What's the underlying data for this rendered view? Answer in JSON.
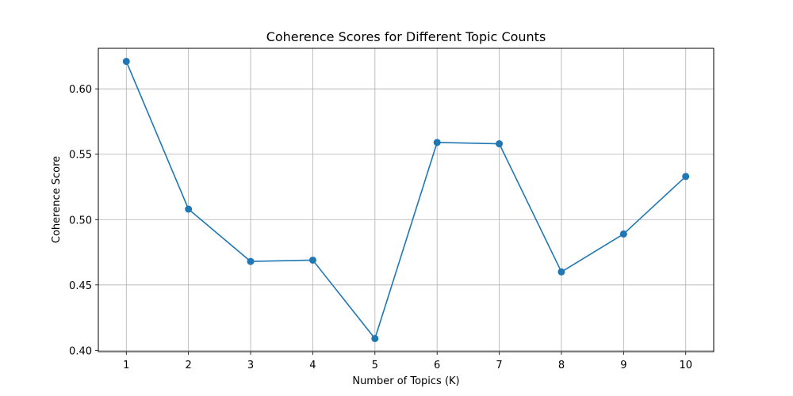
{
  "chart_data": {
    "type": "line",
    "title": "Coherence Scores for Different Topic Counts",
    "xlabel": "Number of Topics (K)",
    "ylabel": "Coherence Score",
    "x": [
      1,
      2,
      3,
      4,
      5,
      6,
      7,
      8,
      9,
      10
    ],
    "xticks": [
      "1",
      "2",
      "3",
      "4",
      "5",
      "6",
      "7",
      "8",
      "9",
      "10"
    ],
    "yticks": [
      "0.40",
      "0.45",
      "0.50",
      "0.55",
      "0.60"
    ],
    "xlim": [
      0.55,
      10.45
    ],
    "ylim": [
      0.399,
      0.631
    ],
    "grid": true,
    "series": [
      {
        "values": [
          0.621,
          0.508,
          0.468,
          0.469,
          0.409,
          0.559,
          0.558,
          0.46,
          0.489,
          0.533
        ],
        "color": "#1f77b4",
        "marker": "circle"
      }
    ]
  }
}
